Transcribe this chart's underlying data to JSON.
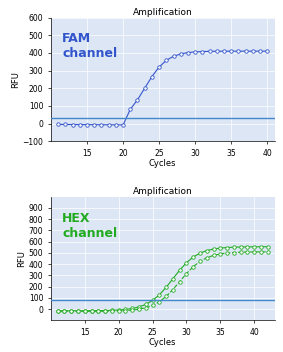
{
  "title": "Amplification",
  "fam_color": "#3355cc",
  "hex_color": "#22aa22",
  "threshold_color": "#4488cc",
  "fam_label": "FAM\nchannel",
  "hex_label": "HEX\nchannel",
  "fam_ylabel": "RFU",
  "hex_ylabel": "RFU",
  "xlabel": "Cycles",
  "fam_ylim": [
    -100,
    600
  ],
  "fam_yticks": [
    -100,
    0,
    100,
    200,
    300,
    400,
    500,
    600
  ],
  "hex_ylim": [
    -100,
    1000
  ],
  "hex_yticks": [
    0,
    100,
    200,
    300,
    400,
    500,
    600,
    700,
    800,
    900
  ],
  "fam_xlim": [
    10,
    41
  ],
  "hex_xlim": [
    10,
    43
  ],
  "fam_xticks": [
    15,
    20,
    25,
    30,
    35,
    40
  ],
  "hex_xticks": [
    15,
    20,
    25,
    30,
    35,
    40
  ],
  "fam_threshold": 30,
  "hex_threshold": 80,
  "background_color": "#dce6f5"
}
